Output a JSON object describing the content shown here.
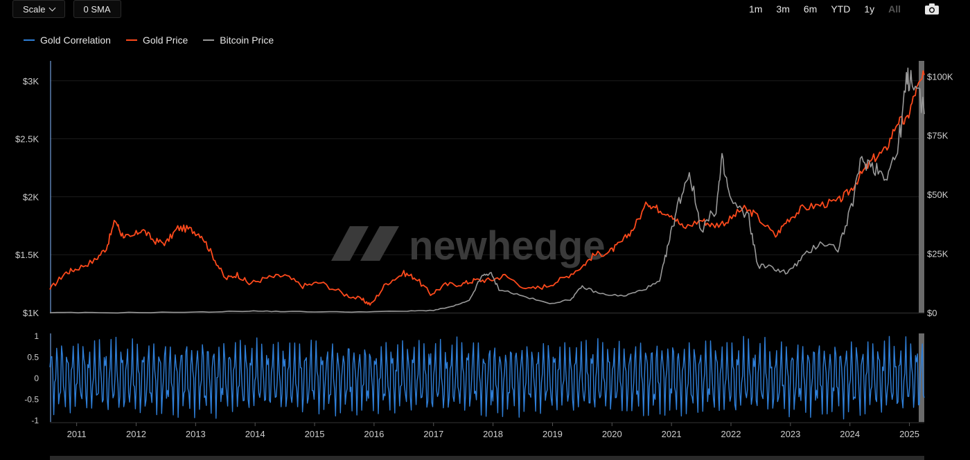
{
  "toolbar": {
    "scale_label": "Scale",
    "sma_label": "0 SMA",
    "ranges": [
      "1m",
      "3m",
      "6m",
      "YTD",
      "1y",
      "All"
    ],
    "active_range": "All"
  },
  "watermark": "newhedge",
  "colors": {
    "correlation": "#2f7fd8",
    "gold": "#ff4a1c",
    "bitcoin": "#9a9a9a",
    "grid": "#1c1c1c",
    "axis_line": "#5a7fb0"
  },
  "chart_data": [
    {
      "type": "line",
      "title": "",
      "legend": [
        {
          "name": "Gold Correlation",
          "color": "#2f7fd8"
        },
        {
          "name": "Gold Price",
          "color": "#ff4a1c"
        },
        {
          "name": "Bitcoin Price",
          "color": "#9a9a9a"
        }
      ],
      "x_ticks": [
        "2011",
        "2012",
        "2013",
        "2014",
        "2015",
        "2016",
        "2017",
        "2018",
        "2019",
        "2020",
        "2021",
        "2022",
        "2023",
        "2024",
        "2025"
      ],
      "xlim": [
        2010.55,
        2025.25
      ],
      "left_axis": {
        "ticks": [
          "$1K",
          "$1.5K",
          "$2K",
          "$2.5K",
          "$3K"
        ],
        "ylim": [
          1000,
          3100
        ],
        "values": [
          1000,
          1500,
          2000,
          2500,
          3000
        ]
      },
      "right_axis": {
        "ticks": [
          "$0",
          "$25K",
          "$50K",
          "$75K",
          "$100K"
        ],
        "ylim": [
          0,
          103000
        ],
        "values": [
          0,
          25000,
          50000,
          75000,
          100000
        ]
      },
      "series": [
        {
          "name": "Gold Price",
          "axis": "left",
          "x": [
            2010.55,
            2010.8,
            2011.0,
            2011.3,
            2011.5,
            2011.65,
            2011.75,
            2011.9,
            2012.1,
            2012.3,
            2012.5,
            2012.7,
            2012.9,
            2013.1,
            2013.3,
            2013.5,
            2013.7,
            2013.9,
            2014.2,
            2014.5,
            2014.8,
            2015.1,
            2015.5,
            2015.8,
            2015.95,
            2016.2,
            2016.5,
            2016.7,
            2016.95,
            2017.2,
            2017.5,
            2017.7,
            2017.95,
            2018.2,
            2018.6,
            2018.9,
            2019.2,
            2019.5,
            2019.7,
            2019.95,
            2020.15,
            2020.35,
            2020.6,
            2020.75,
            2021.0,
            2021.2,
            2021.5,
            2021.7,
            2021.95,
            2022.2,
            2022.4,
            2022.75,
            2022.95,
            2023.2,
            2023.5,
            2023.8,
            2024.0,
            2024.2,
            2024.4,
            2024.6,
            2024.8,
            2024.95,
            2025.1,
            2025.25
          ],
          "values": [
            1200,
            1340,
            1380,
            1450,
            1560,
            1800,
            1680,
            1640,
            1720,
            1620,
            1600,
            1730,
            1720,
            1670,
            1480,
            1290,
            1330,
            1250,
            1300,
            1320,
            1230,
            1260,
            1160,
            1110,
            1070,
            1250,
            1340,
            1300,
            1160,
            1240,
            1250,
            1280,
            1280,
            1320,
            1200,
            1230,
            1300,
            1400,
            1500,
            1520,
            1600,
            1720,
            1950,
            1900,
            1850,
            1730,
            1800,
            1750,
            1790,
            1900,
            1850,
            1660,
            1800,
            1900,
            1930,
            1960,
            2050,
            2200,
            2330,
            2400,
            2650,
            2650,
            2900,
            3050
          ]
        },
        {
          "name": "Bitcoin Price",
          "axis": "right",
          "x": [
            2010.55,
            2011.5,
            2013.0,
            2013.9,
            2014.5,
            2015.5,
            2016.5,
            2017.0,
            2017.3,
            2017.6,
            2017.8,
            2017.95,
            2018.1,
            2018.5,
            2018.95,
            2019.3,
            2019.5,
            2019.8,
            2020.2,
            2020.5,
            2020.8,
            2020.95,
            2021.1,
            2021.3,
            2021.5,
            2021.75,
            2021.85,
            2022.0,
            2022.3,
            2022.45,
            2022.7,
            2022.95,
            2023.2,
            2023.5,
            2023.8,
            2024.0,
            2024.2,
            2024.4,
            2024.6,
            2024.8,
            2024.95,
            2025.05,
            2025.25
          ],
          "values": [
            0,
            0,
            200,
            700,
            500,
            300,
            600,
            1000,
            2500,
            5000,
            15000,
            17000,
            10000,
            7000,
            3800,
            5500,
            11000,
            8000,
            7000,
            9500,
            13000,
            29000,
            45000,
            60000,
            35000,
            44000,
            64000,
            47000,
            40000,
            20000,
            19000,
            16800,
            23000,
            30000,
            27000,
            42000,
            65000,
            62000,
            58000,
            68000,
            97000,
            101000,
            84000
          ]
        }
      ]
    },
    {
      "type": "line",
      "title": "",
      "series_name": "Gold Correlation",
      "y_ticks": [
        "1",
        "0.5",
        "0",
        "-0.5",
        "-1"
      ],
      "y_tick_values": [
        1,
        0.5,
        0,
        -0.5,
        -1
      ],
      "ylim": [
        -1,
        1
      ],
      "xlim": [
        2010.55,
        2025.25
      ],
      "oscillation": {
        "cycles_per_year": 11,
        "amplitude": 0.85
      }
    }
  ]
}
